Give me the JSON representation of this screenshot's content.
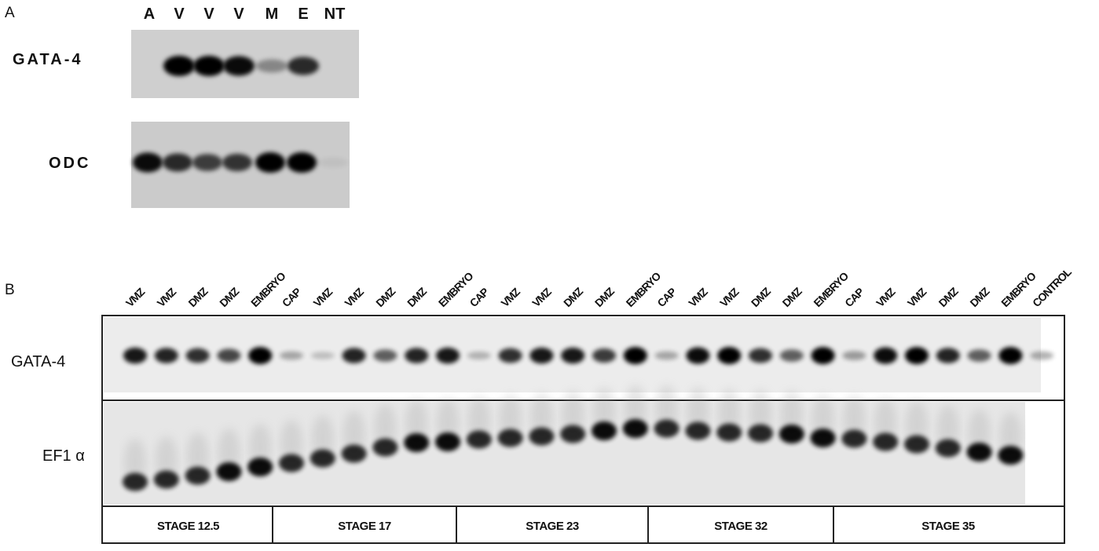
{
  "panel_a": {
    "label": "A",
    "lanes": [
      "A",
      "V",
      "V",
      "V",
      "M",
      "E",
      "NT"
    ],
    "rows": [
      "GATA-4",
      "ODC"
    ]
  },
  "panel_b": {
    "label": "B",
    "lanes": [
      "VMZ",
      "VMZ",
      "DMZ",
      "DMZ",
      "EMBRYO",
      "CAP",
      "VMZ",
      "VMZ",
      "DMZ",
      "DMZ",
      "EMBRYO",
      "CAP",
      "VMZ",
      "VMZ",
      "DMZ",
      "DMZ",
      "EMBRYO",
      "CAP",
      "VMZ",
      "VMZ",
      "DMZ",
      "DMZ",
      "EMBRYO",
      "CAP",
      "VMZ",
      "VMZ",
      "DMZ",
      "DMZ",
      "EMBRYO",
      "CONTROL"
    ],
    "rows": [
      "GATA-4",
      "EF1 α"
    ],
    "stages": [
      "STAGE 12.5",
      "STAGE 17",
      "STAGE 23",
      "STAGE 32",
      "STAGE 35"
    ]
  }
}
